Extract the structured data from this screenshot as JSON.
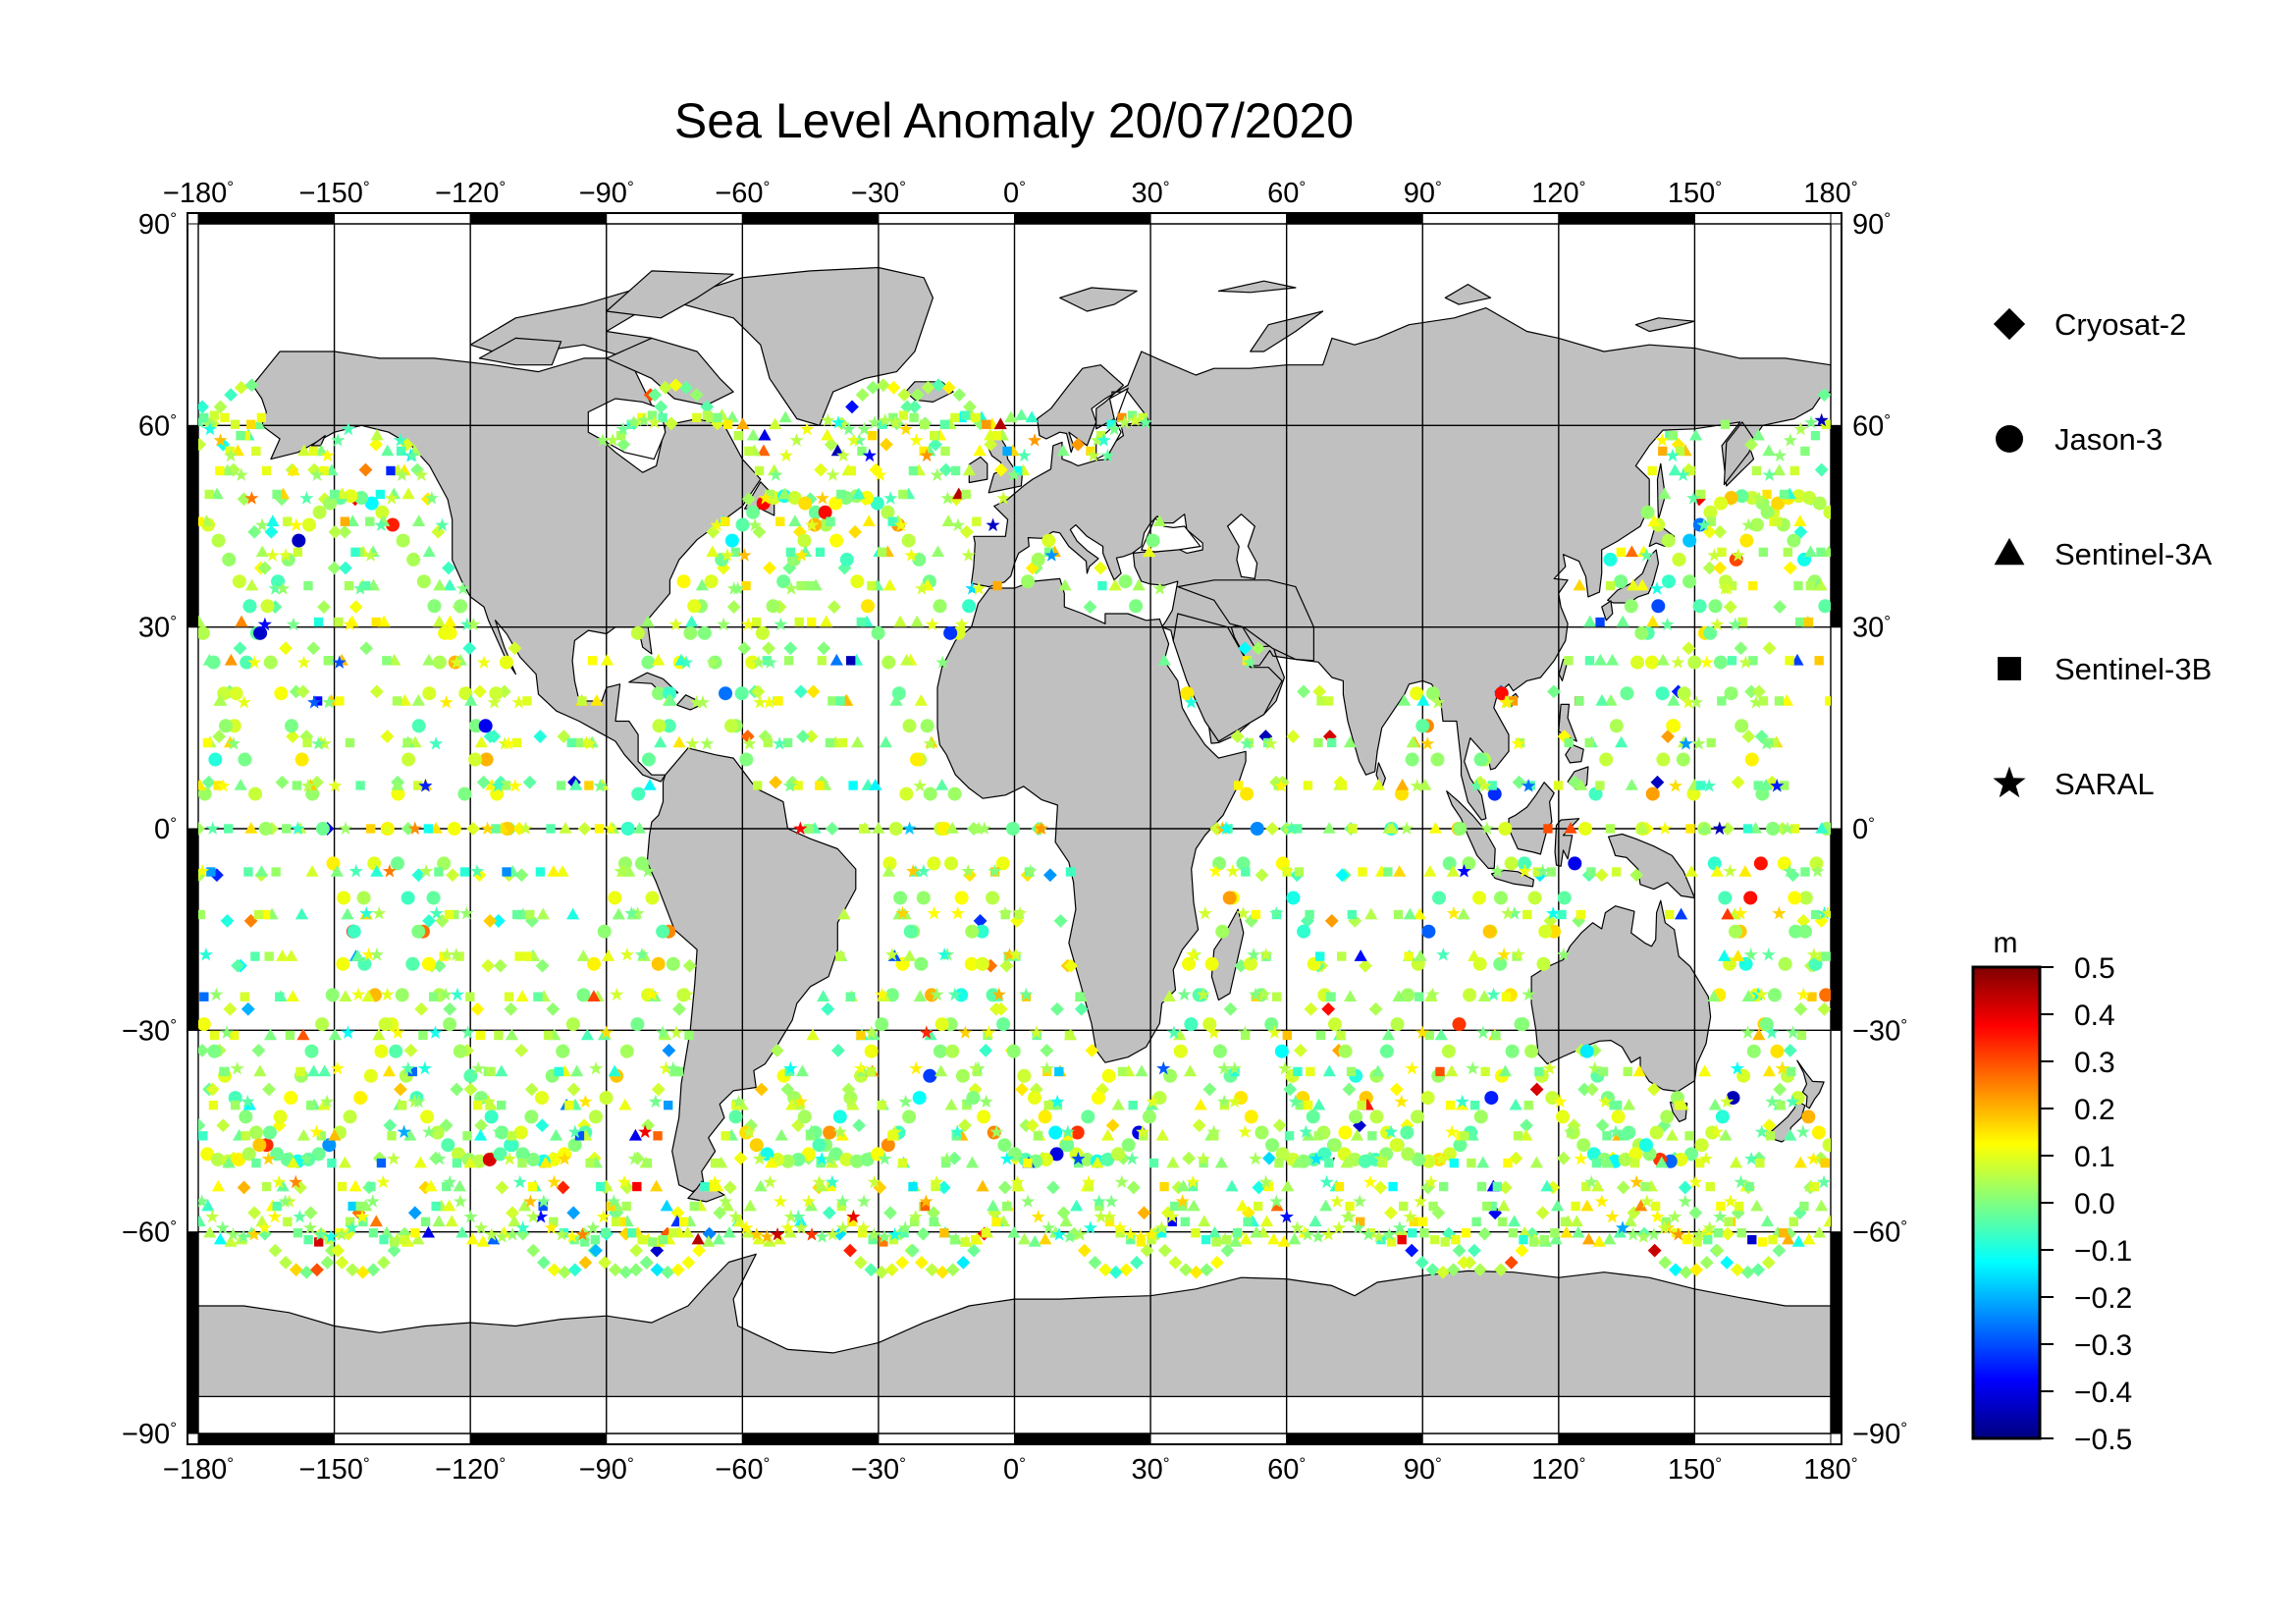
{
  "chart_data": {
    "type": "scatter",
    "title": "Sea Level Anomaly 20/07/2020",
    "xlabel": "",
    "ylabel": "",
    "xlim": [
      -180,
      180
    ],
    "ylim": [
      -90,
      90
    ],
    "x_ticks": [
      -180,
      -150,
      -120,
      -90,
      -60,
      -30,
      0,
      30,
      60,
      90,
      120,
      150,
      180
    ],
    "y_ticks": [
      -90,
      -60,
      -30,
      0,
      30,
      60,
      90
    ],
    "x_tick_labels": [
      "−180",
      "−150",
      "−120",
      "−90",
      "−60",
      "−30",
      "0",
      "30",
      "60",
      "90",
      "120",
      "150",
      "180"
    ],
    "y_tick_labels": [
      "−90",
      "−60",
      "−30",
      "0",
      "30",
      "60",
      "90"
    ],
    "degree_symbol": "°",
    "grid": true,
    "legend_position": "right",
    "series": [
      {
        "name": "Cryosat-2",
        "marker": "diamond"
      },
      {
        "name": "Jason-3",
        "marker": "circle"
      },
      {
        "name": "Sentinel-3A",
        "marker": "triangle"
      },
      {
        "name": "Sentinel-3B",
        "marker": "square"
      },
      {
        "name": "SARAL",
        "marker": "star"
      }
    ],
    "colorbar": {
      "unit": "m",
      "min": -0.5,
      "max": 0.5,
      "tick_labels": [
        "0.5",
        "0.4",
        "0.3",
        "0.2",
        "0.1",
        "0.0",
        "−0.1",
        "−0.2",
        "−0.3",
        "−0.4",
        "−0.5"
      ],
      "stops": [
        "#00007f",
        "#0000ff",
        "#0080ff",
        "#00ffff",
        "#80ff80",
        "#ffff00",
        "#ff8000",
        "#ff0000",
        "#7f0000"
      ]
    },
    "land_color": "#c0c0c0",
    "ocean_color": "#ffffff"
  }
}
